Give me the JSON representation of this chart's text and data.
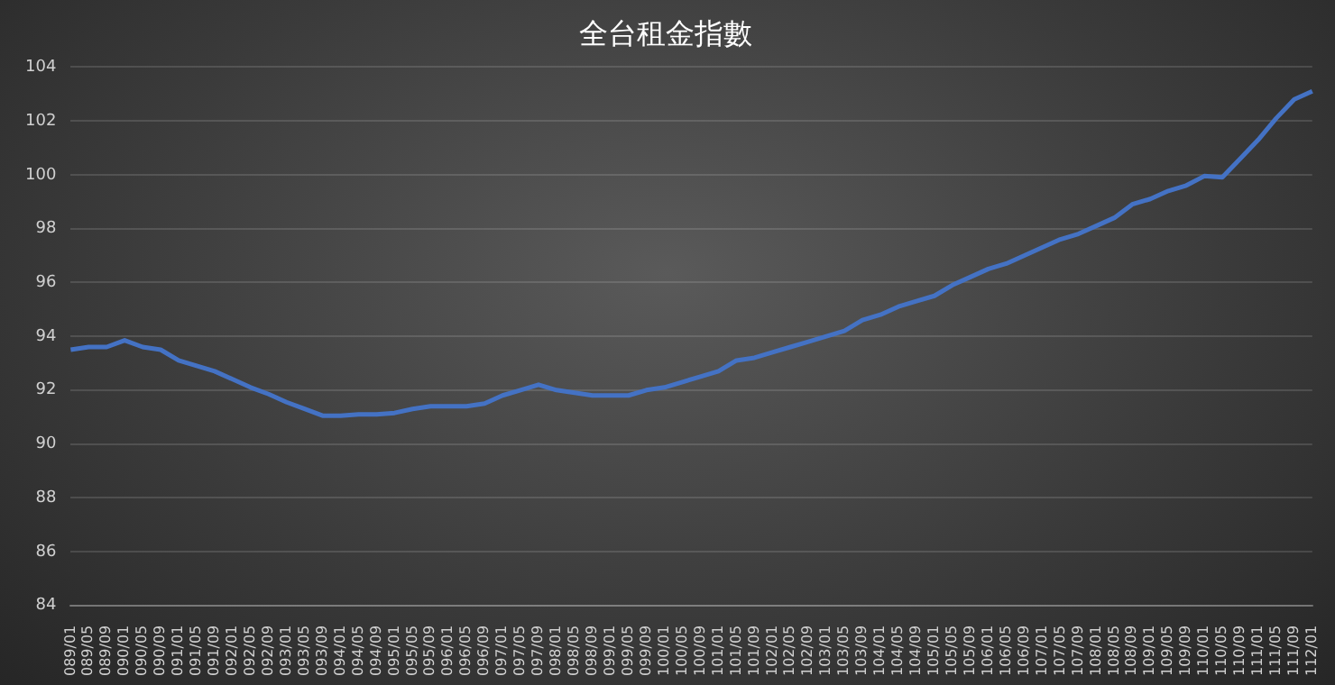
{
  "chart_data": {
    "type": "line",
    "title": "全台租金指數",
    "categories": [
      "089/01",
      "089/05",
      "089/09",
      "090/01",
      "090/05",
      "090/09",
      "091/01",
      "091/05",
      "091/09",
      "092/01",
      "092/05",
      "092/09",
      "093/01",
      "093/05",
      "093/09",
      "094/01",
      "094/05",
      "094/09",
      "095/01",
      "095/05",
      "095/09",
      "096/01",
      "096/05",
      "096/09",
      "097/01",
      "097/05",
      "097/09",
      "098/01",
      "098/05",
      "098/09",
      "099/01",
      "099/05",
      "099/09",
      "100/01",
      "100/05",
      "100/09",
      "101/01",
      "101/05",
      "101/09",
      "102/01",
      "102/05",
      "102/09",
      "103/01",
      "103/05",
      "103/09",
      "104/01",
      "104/05",
      "104/09",
      "105/01",
      "105/05",
      "105/09",
      "106/01",
      "106/05",
      "106/09",
      "107/01",
      "107/05",
      "107/09",
      "108/01",
      "108/05",
      "108/09",
      "109/01",
      "109/05",
      "109/09",
      "110/01",
      "110/05",
      "110/09",
      "111/01",
      "111/05",
      "111/09",
      "112/01"
    ],
    "series": [
      {
        "color": "#4472c4",
        "values": [
          93.5,
          93.6,
          93.6,
          93.85,
          93.6,
          93.5,
          93.1,
          92.9,
          92.7,
          92.4,
          92.1,
          91.85,
          91.55,
          91.3,
          91.05,
          91.05,
          91.1,
          91.1,
          91.15,
          91.3,
          91.4,
          91.4,
          91.4,
          91.5,
          91.8,
          92.0,
          92.2,
          92.0,
          91.9,
          91.8,
          91.8,
          91.8,
          92.0,
          92.1,
          92.3,
          92.5,
          92.7,
          93.1,
          93.2,
          93.4,
          93.6,
          93.8,
          94.0,
          94.2,
          94.6,
          94.8,
          95.1,
          95.3,
          95.5,
          95.9,
          96.2,
          96.5,
          96.7,
          97.0,
          97.3,
          97.6,
          97.8,
          98.1,
          98.4,
          98.9,
          99.1,
          99.4,
          99.6,
          99.95,
          99.9,
          100.6,
          101.3,
          102.1,
          102.8,
          103.1
        ]
      }
    ],
    "ylim": [
      84,
      104
    ],
    "yticks": [
      84,
      86,
      88,
      90,
      92,
      94,
      96,
      98,
      100,
      102,
      104
    ],
    "grid": "y",
    "legend": false,
    "marker": "none",
    "line_style": "solid"
  }
}
